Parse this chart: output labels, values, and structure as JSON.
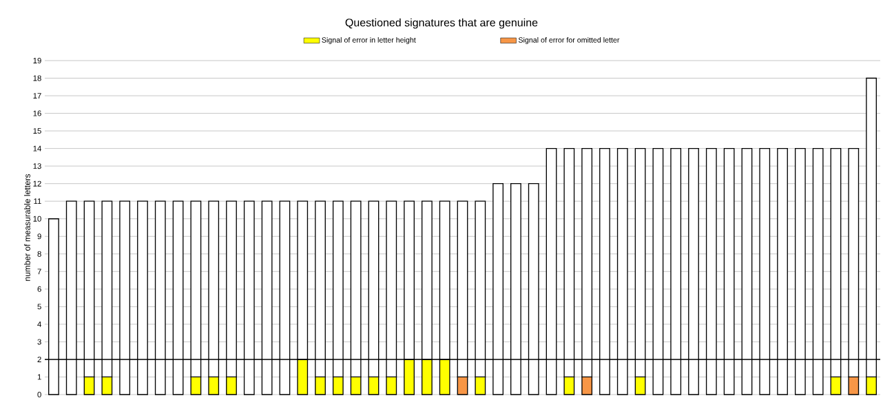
{
  "chart_data": {
    "type": "bar",
    "title": "Questioned signatures that are genuine",
    "ylabel": "number of measurable letters",
    "categories": [
      null,
      null,
      null,
      null,
      null,
      null,
      null,
      null,
      null,
      null,
      null,
      null,
      null,
      null,
      null,
      null,
      null,
      null,
      null,
      null,
      null,
      null,
      null,
      null,
      null,
      null,
      null,
      null,
      null,
      null,
      null,
      null,
      null,
      null,
      null,
      null,
      null,
      null,
      null,
      null,
      null,
      null,
      null,
      null,
      null,
      null,
      null
    ],
    "stacked": true,
    "series": [
      {
        "name": "Signal of error in letter height",
        "color": "#ffff00",
        "values": [
          null,
          null,
          1,
          1,
          null,
          null,
          null,
          null,
          1,
          1,
          1,
          null,
          null,
          null,
          2,
          1,
          1,
          1,
          1,
          1,
          2,
          2,
          2,
          null,
          1,
          null,
          null,
          null,
          null,
          1,
          null,
          null,
          null,
          1,
          null,
          null,
          null,
          null,
          null,
          null,
          null,
          null,
          null,
          null,
          1,
          null,
          1
        ]
      },
      {
        "name": "Signal of error for omitted letter",
        "color": "#f79646",
        "values": [
          null,
          null,
          null,
          null,
          null,
          null,
          null,
          null,
          null,
          null,
          null,
          null,
          null,
          null,
          null,
          null,
          null,
          null,
          null,
          null,
          null,
          null,
          null,
          1,
          null,
          null,
          null,
          null,
          null,
          null,
          1,
          null,
          null,
          null,
          null,
          null,
          null,
          null,
          null,
          null,
          null,
          null,
          null,
          null,
          null,
          1,
          null
        ]
      },
      {
        "color": "#ffffff",
        "values": [
          10,
          11,
          10,
          10,
          11,
          11,
          11,
          11,
          10,
          10,
          10,
          11,
          11,
          11,
          9,
          10,
          10,
          10,
          10,
          10,
          9,
          9,
          9,
          10,
          10,
          12,
          12,
          12,
          14,
          13,
          13,
          14,
          14,
          13,
          14,
          14,
          14,
          14,
          14,
          14,
          14,
          14,
          14,
          14,
          13,
          13,
          17
        ]
      }
    ],
    "ylim": [
      0,
      19
    ],
    "yticks": [
      0,
      1,
      2,
      3,
      4,
      5,
      6,
      7,
      8,
      9,
      10,
      11,
      12,
      13,
      14,
      15,
      16,
      17,
      18,
      19
    ],
    "ref_lines": [
      {
        "axis": "y",
        "value": 2,
        "color": "#000000"
      }
    ],
    "grid": "y",
    "legend": "top",
    "tick_labels": "y"
  }
}
